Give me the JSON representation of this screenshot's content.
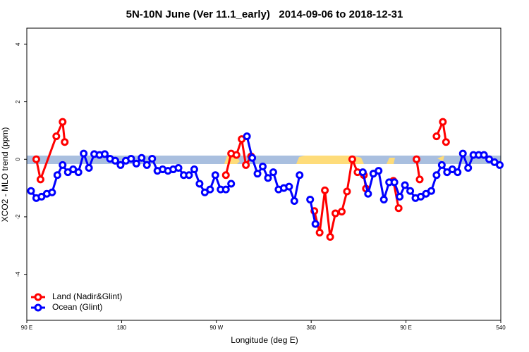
{
  "chart_data": {
    "type": "line",
    "title": "5N-10N June (Ver 11.1_early)   2014-09-06 to 2018-12-31",
    "x_label": "Longitude (deg E)",
    "y_label": "XCO2 - MLO trend (ppm)",
    "xlim": [
      90,
      540
    ],
    "xticks": [
      {
        "value": 90,
        "label": "90 E"
      },
      180,
      {
        "value": 270,
        "label": "90 W"
      },
      360,
      {
        "value": 450,
        "label": "90 E"
      },
      540
    ],
    "ylim": [
      -5.6,
      4.56
    ],
    "yticks": [
      -4,
      -2,
      0,
      2,
      4
    ],
    "legend": "bottom-left",
    "series": [
      {
        "name": "Land (Nadir&Glint)",
        "color": "#ff0000",
        "x": [
          99,
          103,
          118,
          124,
          126,
          null,
          279,
          284,
          289,
          294,
          298,
          303,
          null,
          363,
          368,
          373,
          378,
          383,
          389,
          394,
          399,
          404,
          410,
          412,
          null,
          438,
          443,
          null,
          460,
          463,
          null,
          479,
          485,
          488
        ],
        "values": [
          0.0,
          -0.7,
          0.8,
          1.3,
          0.6,
          null,
          -0.55,
          0.2,
          0.15,
          0.7,
          -0.2,
          0.1,
          null,
          -1.8,
          -2.55,
          -1.08,
          -2.7,
          -1.88,
          -1.82,
          -1.12,
          0.0,
          -0.45,
          -0.55,
          -1.02,
          null,
          -0.75,
          -1.7,
          null,
          0.0,
          -0.7,
          null,
          0.8,
          1.3,
          0.6
        ]
      },
      {
        "name": "Ocean (Glint)",
        "color": "#0000ff",
        "x": [
          94,
          99,
          104,
          109,
          114,
          119,
          124,
          129,
          134,
          139,
          144,
          149,
          154,
          159,
          164,
          169,
          174,
          179,
          184,
          189,
          194,
          199,
          204,
          209,
          214,
          219,
          224,
          229,
          234,
          239,
          244,
          249,
          254,
          259,
          264,
          269,
          274,
          279,
          284,
          null,
          null,
          299,
          304,
          309,
          314,
          319,
          324,
          329,
          334,
          339,
          344,
          349,
          null,
          359,
          364,
          null,
          null,
          null,
          null,
          null,
          null,
          null,
          null,
          409,
          414,
          419,
          424,
          429,
          434,
          439,
          444,
          449,
          454,
          459,
          464,
          469,
          474,
          479,
          484,
          489,
          494,
          499,
          504,
          509,
          514,
          519,
          524,
          529,
          534,
          539
        ],
        "values": [
          -1.1,
          -1.35,
          -1.3,
          -1.2,
          -1.15,
          -0.55,
          -0.2,
          -0.45,
          -0.35,
          -0.45,
          0.2,
          -0.3,
          0.18,
          0.15,
          0.18,
          0.02,
          -0.05,
          -0.2,
          -0.05,
          0.02,
          -0.15,
          0.05,
          -0.2,
          0.02,
          -0.4,
          -0.35,
          -0.4,
          -0.35,
          -0.3,
          -0.55,
          -0.55,
          -0.35,
          -0.85,
          -1.15,
          -1.05,
          -0.55,
          -1.05,
          -1.05,
          -0.85,
          null,
          null,
          0.8,
          0.05,
          -0.5,
          -0.25,
          -0.65,
          -0.45,
          -1.05,
          -1.0,
          -0.95,
          -1.45,
          -0.55,
          null,
          -1.4,
          -2.25,
          null,
          null,
          null,
          null,
          null,
          null,
          null,
          null,
          -0.45,
          -1.2,
          -0.5,
          -0.4,
          -1.4,
          -0.8,
          -0.8,
          -1.3,
          -0.9,
          -1.1,
          -1.35,
          -1.3,
          -1.2,
          -1.1,
          -0.55,
          -0.2,
          -0.45,
          -0.35,
          -0.45,
          0.2,
          -0.3,
          0.15,
          0.15,
          0.15,
          0.0,
          -0.1,
          -0.2
        ]
      }
    ]
  }
}
